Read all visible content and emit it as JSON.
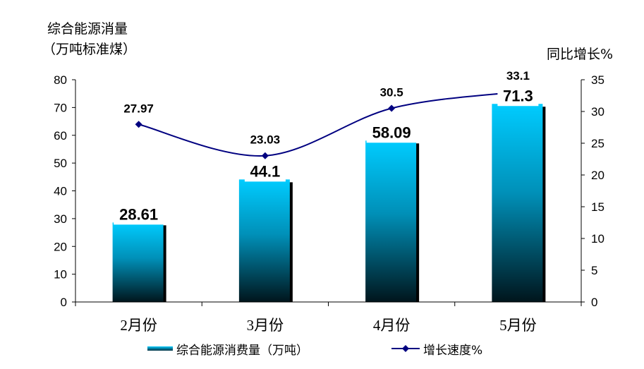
{
  "chart_data": {
    "type": "bar+line",
    "left_axis_title_line1": "综合能源消量",
    "left_axis_title_line2": "（万吨标准煤）",
    "right_axis_title": "同比增长%",
    "categories": [
      "2月份",
      "3月份",
      "4月份",
      "5月份"
    ],
    "ylim_left": [
      0,
      80
    ],
    "yticks_left": [
      0,
      10,
      20,
      30,
      40,
      50,
      60,
      70,
      80
    ],
    "ylim_right": [
      0,
      35
    ],
    "yticks_right": [
      0,
      5,
      10,
      15,
      20,
      25,
      30,
      35
    ],
    "grid": false,
    "legend_position": "bottom",
    "series": [
      {
        "name": "综合能源消费量（万吨）",
        "type": "bar",
        "axis": "left",
        "values": [
          28.61,
          44.1,
          58.09,
          71.3
        ],
        "labels": [
          "28.61",
          "44.1",
          "58.09",
          "71.3"
        ],
        "color_top": "#00ccff",
        "color_bottom": "#00151c"
      },
      {
        "name": "增长速度%",
        "type": "line",
        "axis": "right",
        "values": [
          27.97,
          23.03,
          30.5,
          33.1
        ],
        "labels": [
          "27.97",
          "23.03",
          "30.5",
          "33.1"
        ],
        "color": "#000080",
        "marker": "diamond"
      }
    ]
  }
}
